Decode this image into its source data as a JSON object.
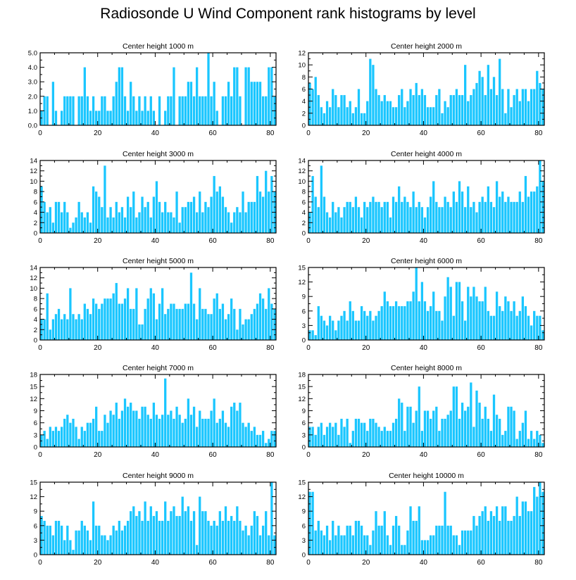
{
  "title": "Radiosonde U Wind Component rank histograms by level",
  "colors": {
    "bar": "#1ac6ff",
    "axis": "#000000",
    "background": "#ffffff"
  },
  "chart_data": [
    {
      "type": "bar",
      "title": "Center height 1000 m",
      "xlim": [
        0,
        82
      ],
      "ylim": [
        0,
        5
      ],
      "xticks": [
        0,
        20,
        40,
        60,
        80
      ],
      "yticks": [
        0,
        1,
        2,
        3,
        4,
        5
      ],
      "ytick_labels": [
        "0.0",
        "1.0",
        "2.0",
        "3.0",
        "4.0",
        "5.0"
      ],
      "values": [
        1,
        2,
        2,
        0,
        3,
        1,
        0,
        1,
        2,
        2,
        2,
        2,
        0,
        2,
        2,
        4,
        2,
        1,
        2,
        1,
        1,
        2,
        2,
        1,
        1,
        2,
        3,
        4,
        4,
        2,
        1,
        3,
        2,
        1,
        2,
        1,
        2,
        1,
        2,
        1,
        0,
        2,
        0,
        1,
        2,
        2,
        4,
        0,
        2,
        2,
        2,
        3,
        3,
        2,
        4,
        2,
        2,
        2,
        5,
        2,
        3,
        1,
        0,
        2,
        2,
        3,
        2,
        4,
        4,
        2,
        0,
        4,
        4,
        3,
        3,
        3,
        3,
        2,
        2,
        4,
        4,
        2
      ]
    },
    {
      "type": "bar",
      "title": "Center height 2000 m",
      "xlim": [
        0,
        82
      ],
      "ylim": [
        0,
        12
      ],
      "xticks": [
        0,
        20,
        40,
        60,
        80
      ],
      "yticks": [
        0,
        2,
        4,
        6,
        8,
        10,
        12
      ],
      "ytick_labels": [
        "0",
        "2",
        "4",
        "6",
        "8",
        "10",
        "12"
      ],
      "values": [
        7,
        6,
        8,
        5,
        3,
        2,
        4,
        3,
        6,
        5,
        3,
        5,
        5,
        3,
        4,
        2,
        3,
        6,
        2,
        2,
        4,
        11,
        10,
        6,
        5,
        4,
        5,
        4,
        4,
        3,
        3,
        5,
        6,
        3,
        4,
        6,
        5,
        7,
        5,
        6,
        5,
        3,
        3,
        3,
        5,
        6,
        2,
        4,
        3,
        5,
        5,
        6,
        5,
        5,
        10,
        4,
        5,
        6,
        7,
        9,
        8,
        5,
        10,
        6,
        8,
        5,
        11,
        6,
        2,
        6,
        3,
        5,
        6,
        4,
        6,
        6,
        4,
        6,
        6,
        9,
        7,
        6
      ]
    },
    {
      "type": "bar",
      "title": "Center height 3000 m",
      "xlim": [
        0,
        82
      ],
      "ylim": [
        0,
        14
      ],
      "xticks": [
        0,
        20,
        40,
        60,
        80
      ],
      "yticks": [
        0,
        2,
        4,
        6,
        8,
        10,
        12,
        14
      ],
      "ytick_labels": [
        "0",
        "2",
        "4",
        "6",
        "8",
        "10",
        "12",
        "14"
      ],
      "values": [
        9,
        6,
        4,
        5,
        2,
        6,
        6,
        4,
        6,
        4,
        1,
        2,
        3,
        6,
        4,
        3,
        4,
        2,
        9,
        8,
        7,
        5,
        13,
        3,
        5,
        3,
        6,
        4,
        5,
        3,
        7,
        5,
        8,
        3,
        4,
        7,
        5,
        6,
        3,
        7,
        10,
        6,
        4,
        6,
        4,
        4,
        3,
        8,
        2,
        5,
        5,
        6,
        6,
        7,
        4,
        8,
        4,
        6,
        5,
        7,
        11,
        8,
        9,
        7,
        5,
        4,
        2,
        4,
        5,
        4,
        8,
        4,
        6,
        6,
        6,
        11,
        8,
        7,
        12,
        8,
        11,
        8
      ]
    },
    {
      "type": "bar",
      "title": "Center height 4000 m",
      "xlim": [
        0,
        82
      ],
      "ylim": [
        0,
        14
      ],
      "xticks": [
        0,
        20,
        40,
        60,
        80
      ],
      "yticks": [
        0,
        2,
        4,
        6,
        8,
        10,
        12,
        14
      ],
      "ytick_labels": [
        "0",
        "2",
        "4",
        "6",
        "8",
        "10",
        "12",
        "14"
      ],
      "values": [
        4,
        11,
        7,
        5,
        13,
        7,
        4,
        3,
        6,
        4,
        5,
        3,
        5,
        6,
        6,
        5,
        7,
        5,
        3,
        6,
        5,
        6,
        7,
        6,
        6,
        5,
        6,
        6,
        3,
        7,
        6,
        9,
        6,
        7,
        6,
        5,
        8,
        5,
        6,
        5,
        3,
        5,
        7,
        10,
        6,
        5,
        5,
        7,
        6,
        5,
        8,
        6,
        10,
        8,
        5,
        9,
        5,
        6,
        4,
        6,
        7,
        6,
        9,
        6,
        5,
        10,
        7,
        8,
        6,
        7,
        6,
        6,
        6,
        8,
        6,
        11,
        7,
        8,
        8,
        9,
        14,
        10
      ]
    },
    {
      "type": "bar",
      "title": "Center height 5000 m",
      "xlim": [
        0,
        82
      ],
      "ylim": [
        0,
        14
      ],
      "xticks": [
        0,
        20,
        40,
        60,
        80
      ],
      "yticks": [
        0,
        2,
        4,
        6,
        8,
        10,
        12,
        14
      ],
      "ytick_labels": [
        "0",
        "2",
        "4",
        "6",
        "8",
        "10",
        "12",
        "14"
      ],
      "values": [
        4,
        4,
        9,
        2,
        4,
        5,
        6,
        4,
        5,
        4,
        10,
        5,
        4,
        5,
        4,
        7,
        6,
        5,
        8,
        7,
        6,
        7,
        8,
        8,
        8,
        9,
        11,
        7,
        7,
        8,
        10,
        6,
        6,
        10,
        3,
        3,
        6,
        8,
        10,
        9,
        4,
        7,
        10,
        5,
        6,
        7,
        7,
        6,
        6,
        6,
        7,
        7,
        13,
        7,
        4,
        10,
        6,
        6,
        5,
        5,
        8,
        9,
        6,
        7,
        4,
        5,
        8,
        6,
        2,
        6,
        3,
        4,
        4,
        5,
        6,
        7,
        9,
        8,
        6,
        10,
        7,
        6
      ]
    },
    {
      "type": "bar",
      "title": "Center height 6000 m",
      "xlim": [
        0,
        82
      ],
      "ylim": [
        0,
        15
      ],
      "xticks": [
        0,
        20,
        40,
        60,
        80
      ],
      "yticks": [
        0,
        3,
        6,
        9,
        12,
        15
      ],
      "ytick_labels": [
        "0",
        "3",
        "6",
        "9",
        "12",
        "15"
      ],
      "values": [
        2,
        2,
        1,
        7,
        5,
        4,
        3,
        5,
        4,
        2,
        4,
        5,
        6,
        4,
        8,
        6,
        4,
        4,
        7,
        6,
        5,
        6,
        4,
        5,
        6,
        7,
        10,
        8,
        7,
        7,
        8,
        7,
        7,
        7,
        8,
        8,
        10,
        15,
        8,
        12,
        8,
        6,
        7,
        10,
        6,
        6,
        4,
        9,
        13,
        11,
        5,
        12,
        12,
        8,
        4,
        11,
        9,
        11,
        9,
        8,
        8,
        11,
        6,
        5,
        5,
        10,
        7,
        6,
        9,
        8,
        6,
        8,
        5,
        6,
        9,
        7,
        5,
        3,
        6,
        5,
        5,
        2
      ]
    },
    {
      "type": "bar",
      "title": "Center height 7000 m",
      "xlim": [
        0,
        82
      ],
      "ylim": [
        0,
        18
      ],
      "xticks": [
        0,
        20,
        40,
        60,
        80
      ],
      "yticks": [
        0,
        3,
        6,
        9,
        12,
        15,
        18
      ],
      "ytick_labels": [
        "0",
        "3",
        "6",
        "9",
        "12",
        "15",
        "18"
      ],
      "values": [
        3,
        4,
        2,
        5,
        4,
        5,
        4,
        5,
        7,
        8,
        6,
        7,
        5,
        2,
        5,
        4,
        6,
        6,
        7,
        10,
        4,
        4,
        8,
        6,
        9,
        8,
        11,
        7,
        9,
        12,
        10,
        11,
        9,
        9,
        7,
        10,
        10,
        8,
        7,
        11,
        8,
        7,
        8,
        17,
        8,
        9,
        7,
        10,
        8,
        6,
        7,
        12,
        8,
        10,
        5,
        9,
        7,
        7,
        7,
        9,
        12,
        6,
        7,
        9,
        6,
        5,
        10,
        11,
        9,
        11,
        6,
        5,
        6,
        4,
        5,
        3,
        3,
        4,
        1,
        2,
        4,
        4
      ]
    },
    {
      "type": "bar",
      "title": "Center height 8000 m",
      "xlim": [
        0,
        82
      ],
      "ylim": [
        0,
        18
      ],
      "xticks": [
        0,
        20,
        40,
        60,
        80
      ],
      "yticks": [
        0,
        3,
        6,
        9,
        12,
        15,
        18
      ],
      "ytick_labels": [
        "0",
        "3",
        "6",
        "9",
        "12",
        "15",
        "18"
      ],
      "values": [
        5,
        5,
        3,
        5,
        6,
        3,
        5,
        6,
        5,
        6,
        3,
        7,
        5,
        7,
        1,
        4,
        7,
        7,
        6,
        6,
        4,
        7,
        7,
        6,
        5,
        4,
        5,
        4,
        4,
        6,
        7,
        12,
        11,
        4,
        10,
        10,
        6,
        9,
        15,
        4,
        9,
        9,
        7,
        9,
        10,
        4,
        7,
        7,
        8,
        9,
        15,
        15,
        7,
        11,
        9,
        10,
        16,
        5,
        14,
        11,
        7,
        10,
        7,
        4,
        13,
        8,
        7,
        3,
        4,
        10,
        10,
        9,
        2,
        4,
        6,
        9,
        2,
        4,
        2,
        4,
        3,
        1
      ]
    },
    {
      "type": "bar",
      "title": "Center height 9000 m",
      "xlim": [
        0,
        82
      ],
      "ylim": [
        0,
        15
      ],
      "xticks": [
        0,
        20,
        40,
        60,
        80
      ],
      "yticks": [
        0,
        3,
        6,
        9,
        12,
        15
      ],
      "ytick_labels": [
        "0",
        "3",
        "6",
        "9",
        "12",
        "15"
      ],
      "values": [
        8,
        7,
        6,
        6,
        4,
        7,
        7,
        6,
        3,
        6,
        3,
        1,
        5,
        5,
        7,
        6,
        5,
        3,
        11,
        6,
        6,
        4,
        4,
        3,
        4,
        6,
        5,
        7,
        5,
        6,
        7,
        9,
        10,
        8,
        9,
        7,
        11,
        7,
        10,
        8,
        9,
        7,
        7,
        11,
        7,
        9,
        10,
        8,
        8,
        12,
        9,
        10,
        7,
        9,
        2,
        12,
        9,
        9,
        7,
        6,
        7,
        6,
        9,
        7,
        10,
        7,
        8,
        7,
        10,
        7,
        5,
        6,
        4,
        6,
        9,
        8,
        4,
        6,
        9,
        4,
        15,
        4
      ]
    },
    {
      "type": "bar",
      "title": "Center height 10000 m",
      "xlim": [
        0,
        82
      ],
      "ylim": [
        0,
        15
      ],
      "xticks": [
        0,
        20,
        40,
        60,
        80
      ],
      "yticks": [
        0,
        3,
        6,
        9,
        12,
        15
      ],
      "ytick_labels": [
        "0",
        "3",
        "6",
        "9",
        "12",
        "15"
      ],
      "values": [
        13,
        13,
        5,
        7,
        5,
        4,
        6,
        3,
        7,
        4,
        6,
        4,
        4,
        6,
        6,
        4,
        7,
        7,
        6,
        4,
        4,
        2,
        5,
        9,
        6,
        6,
        9,
        4,
        2,
        6,
        8,
        6,
        2,
        2,
        5,
        10,
        7,
        7,
        10,
        3,
        3,
        3,
        4,
        4,
        6,
        6,
        6,
        13,
        6,
        6,
        4,
        4,
        2,
        5,
        5,
        5,
        5,
        8,
        6,
        8,
        9,
        10,
        7,
        9,
        8,
        10,
        7,
        10,
        10,
        7,
        7,
        8,
        12,
        8,
        11,
        11,
        9,
        9,
        14,
        12,
        15,
        13
      ]
    }
  ]
}
